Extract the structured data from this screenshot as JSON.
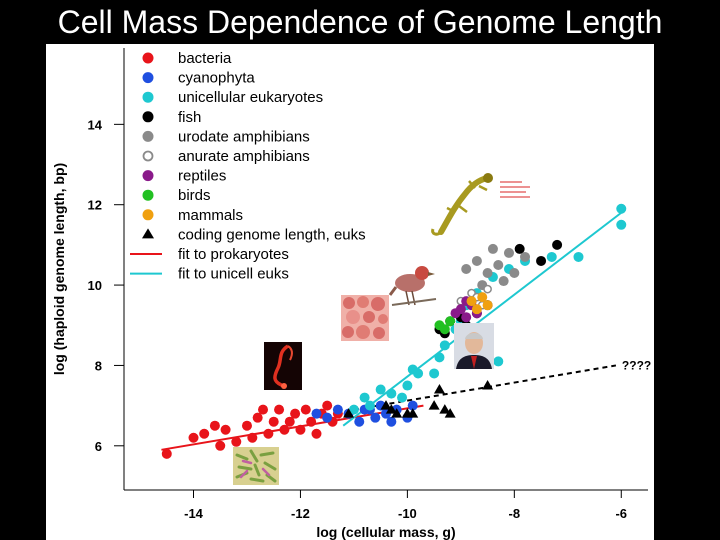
{
  "slide": {
    "title": "Cell Mass Dependence of Genome Length"
  },
  "colors": {
    "bacteria": "#e8141a",
    "cyanophyta": "#1f4fe0",
    "unicellular": "#1ec8d0",
    "fish": "#000000",
    "urodate": "#8a8a8a",
    "anurate": "#8a8a8a",
    "reptiles": "#8a1a8a",
    "birds": "#22c022",
    "mammals": "#f0a010",
    "coding": "#000000",
    "fit_prok": "#e8141a",
    "fit_unicell": "#1ec8d0"
  },
  "icons": [
    "salamander-icon",
    "bird-icon",
    "bacteria-colony-icon",
    "person-photo-icon",
    "protist-icon",
    "rod-bacteria-icon"
  ],
  "chart_data": {
    "type": "scatter",
    "xlabel": "log (cellular mass, g)",
    "ylabel": "log (haploid genome length, bp)",
    "xlim": [
      -15.3,
      -5.5
    ],
    "ylim": [
      4.9,
      15.9
    ],
    "xticks": [
      "-14",
      "-12",
      "-10",
      "-8",
      "-6"
    ],
    "yticks": [
      "6",
      "8",
      "10",
      "12",
      "14"
    ],
    "annotation": "????",
    "legend_position": "top-left",
    "series": [
      {
        "name": "bacteria",
        "key": "bacteria",
        "marker": "dot",
        "points": [
          [
            -14.5,
            5.8
          ],
          [
            -14.0,
            6.2
          ],
          [
            -13.8,
            6.3
          ],
          [
            -13.5,
            6.0
          ],
          [
            -13.4,
            6.4
          ],
          [
            -13.2,
            6.1
          ],
          [
            -13.0,
            6.5
          ],
          [
            -12.9,
            6.2
          ],
          [
            -12.8,
            6.7
          ],
          [
            -12.6,
            6.3
          ],
          [
            -12.5,
            6.6
          ],
          [
            -12.4,
            6.9
          ],
          [
            -12.3,
            6.4
          ],
          [
            -12.2,
            6.6
          ],
          [
            -12.1,
            6.8
          ],
          [
            -12.0,
            6.4
          ],
          [
            -11.9,
            6.9
          ],
          [
            -11.8,
            6.6
          ],
          [
            -11.7,
            6.3
          ],
          [
            -11.6,
            6.8
          ],
          [
            -11.5,
            7.0
          ],
          [
            -11.4,
            6.6
          ],
          [
            -11.3,
            6.8
          ],
          [
            -12.7,
            6.9
          ],
          [
            -13.6,
            6.5
          ]
        ]
      },
      {
        "name": "cyanophyta",
        "key": "cyanophyta",
        "marker": "dot",
        "points": [
          [
            -11.7,
            6.8
          ],
          [
            -11.5,
            6.7
          ],
          [
            -11.3,
            6.9
          ],
          [
            -11.1,
            6.8
          ],
          [
            -10.9,
            6.6
          ],
          [
            -10.8,
            6.9
          ],
          [
            -10.6,
            6.7
          ],
          [
            -10.5,
            7.0
          ],
          [
            -10.3,
            6.6
          ],
          [
            -10.2,
            6.9
          ],
          [
            -10.0,
            6.7
          ],
          [
            -9.9,
            7.0
          ],
          [
            -10.7,
            6.9
          ],
          [
            -10.4,
            6.8
          ]
        ]
      },
      {
        "name": "unicellular eukaryotes",
        "key": "unicellular",
        "marker": "dot",
        "points": [
          [
            -11.0,
            6.9
          ],
          [
            -10.8,
            7.2
          ],
          [
            -10.7,
            7.0
          ],
          [
            -10.5,
            7.4
          ],
          [
            -10.3,
            7.3
          ],
          [
            -10.1,
            7.2
          ],
          [
            -10.0,
            7.5
          ],
          [
            -9.8,
            7.8
          ],
          [
            -9.5,
            7.8
          ],
          [
            -9.9,
            7.9
          ],
          [
            -9.4,
            8.2
          ],
          [
            -9.3,
            8.5
          ],
          [
            -9.1,
            8.9
          ],
          [
            -9.0,
            9.1
          ],
          [
            -8.9,
            9.5
          ],
          [
            -8.7,
            9.8
          ],
          [
            -8.4,
            10.2
          ],
          [
            -8.1,
            10.4
          ],
          [
            -7.8,
            10.6
          ],
          [
            -7.3,
            10.7
          ],
          [
            -6.8,
            10.7
          ],
          [
            -6.0,
            11.5
          ],
          [
            -6.0,
            11.9
          ],
          [
            -8.6,
            8.2
          ],
          [
            -8.3,
            8.1
          ],
          [
            -8.7,
            8.8
          ]
        ]
      },
      {
        "name": "fish",
        "key": "fish",
        "marker": "dot",
        "points": [
          [
            -9.4,
            8.9
          ],
          [
            -9.2,
            9.1
          ],
          [
            -9.0,
            9.2
          ],
          [
            -8.9,
            9.0
          ],
          [
            -8.7,
            9.3
          ],
          [
            -8.5,
            9.5
          ],
          [
            -7.9,
            10.9
          ],
          [
            -7.5,
            10.6
          ],
          [
            -7.2,
            11.0
          ],
          [
            -9.3,
            8.8
          ],
          [
            -8.8,
            9.6
          ]
        ]
      },
      {
        "name": "urodate amphibians",
        "key": "urodate",
        "marker": "dot",
        "points": [
          [
            -8.9,
            10.4
          ],
          [
            -8.7,
            10.6
          ],
          [
            -8.5,
            10.3
          ],
          [
            -8.3,
            10.5
          ],
          [
            -8.1,
            10.8
          ],
          [
            -8.0,
            10.3
          ],
          [
            -7.8,
            10.7
          ],
          [
            -8.4,
            10.9
          ],
          [
            -8.6,
            10.0
          ],
          [
            -8.2,
            10.1
          ]
        ]
      },
      {
        "name": "anurate amphibians",
        "key": "anurate",
        "marker": "ring",
        "points": [
          [
            -9.0,
            9.6
          ],
          [
            -8.8,
            9.8
          ],
          [
            -8.6,
            9.5
          ],
          [
            -8.5,
            9.9
          ],
          [
            -8.7,
            9.7
          ]
        ]
      },
      {
        "name": "reptiles",
        "key": "reptiles",
        "marker": "dot",
        "points": [
          [
            -9.1,
            9.3
          ],
          [
            -9.0,
            9.4
          ],
          [
            -8.9,
            9.2
          ],
          [
            -8.8,
            9.5
          ],
          [
            -8.7,
            9.3
          ],
          [
            -8.9,
            9.6
          ]
        ]
      },
      {
        "name": "birds",
        "key": "birds",
        "marker": "dot",
        "points": [
          [
            -9.4,
            9.0
          ],
          [
            -9.3,
            8.9
          ],
          [
            -9.2,
            9.1
          ]
        ]
      },
      {
        "name": "mammals",
        "key": "mammals",
        "marker": "dot",
        "points": [
          [
            -8.8,
            9.6
          ],
          [
            -8.7,
            9.4
          ],
          [
            -8.6,
            9.7
          ],
          [
            -8.5,
            9.5
          ]
        ]
      },
      {
        "name": "coding genome length, euks",
        "key": "coding",
        "marker": "triangle",
        "points": [
          [
            -11.1,
            6.8
          ],
          [
            -10.4,
            7.0
          ],
          [
            -10.3,
            6.9
          ],
          [
            -10.2,
            6.8
          ],
          [
            -10.0,
            6.8
          ],
          [
            -9.9,
            6.8
          ],
          [
            -9.4,
            7.4
          ],
          [
            -9.5,
            7.0
          ],
          [
            -9.3,
            6.9
          ],
          [
            -9.2,
            6.8
          ],
          [
            -8.5,
            7.5
          ]
        ]
      }
    ],
    "fits": [
      {
        "name": "fit to prokaryotes",
        "key": "fit_prok",
        "style": "solid",
        "from": [
          -14.6,
          5.9
        ],
        "to": [
          -9.7,
          7.0
        ]
      },
      {
        "name": "fit to unicell euks",
        "key": "fit_unicell",
        "style": "solid",
        "from": [
          -11.2,
          6.5
        ],
        "to": [
          -6.0,
          11.8
        ]
      },
      {
        "name": "",
        "key": "coding",
        "style": "dashed",
        "from": [
          -11.0,
          6.9
        ],
        "to": [
          -6.1,
          8.0
        ]
      }
    ]
  }
}
